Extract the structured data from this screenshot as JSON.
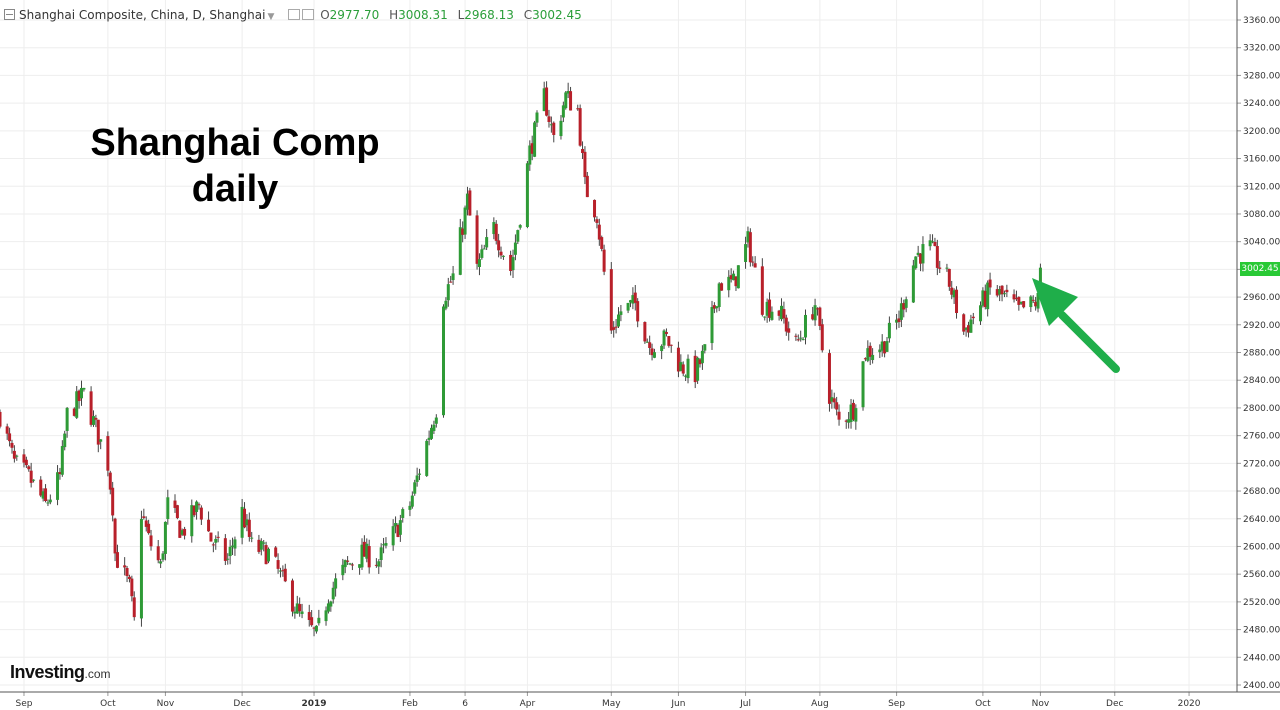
{
  "legend": {
    "symbol": "Shanghai Composite, China, D, Shanghai",
    "open_key": "O",
    "open": "2977.70",
    "high_key": "H",
    "high": "3008.31",
    "low_key": "L",
    "low": "2968.13",
    "close_key": "C",
    "close": "3002.45"
  },
  "headline": {
    "line1": "Shanghai Comp",
    "line2": "daily"
  },
  "logo": {
    "brand": "Investing",
    "suffix": ".com"
  },
  "price_tag": "3002.45",
  "colors": {
    "up": "#2e9a36",
    "down": "#b8202a",
    "arrow": "#1fae4a",
    "price_tag": "#29c935",
    "grid": "#eeeeee"
  },
  "icons": [
    "collapse-icon",
    "visibility-icon",
    "settings-icon",
    "dropdown-caret-icon",
    "arrow-icon"
  ],
  "chart_data": {
    "type": "candlestick",
    "title": "Shanghai Comp daily",
    "xlabel": "",
    "ylabel": "",
    "ylim": [
      2400,
      3360
    ],
    "ytick_labels": [
      "3360.00",
      "3320.00",
      "3280.00",
      "3240.00",
      "3200.00",
      "3160.00",
      "3120.00",
      "3080.00",
      "3040.00",
      "3000.00",
      "2960.00",
      "2920.00",
      "2880.00",
      "2840.00",
      "2800.00",
      "2760.00",
      "2720.00",
      "2680.00",
      "2640.00",
      "2600.00",
      "2560.00",
      "2520.00",
      "2480.00",
      "2440.00",
      "2400.00"
    ],
    "xtick_labels": [
      "Sep",
      "Oct",
      "Nov",
      "Dec",
      "2019",
      "Feb",
      "6",
      "Apr",
      "May",
      "Jun",
      "Jul",
      "Aug",
      "Sep",
      "Oct",
      "Nov",
      "Dec",
      "2020"
    ],
    "xlim": [
      "2018-08-24",
      "2020-01-22"
    ],
    "price_path": [
      [
        "2018-08-24",
        2790
      ],
      [
        "2018-08-30",
        2720
      ],
      [
        "2018-09-05",
        2700
      ],
      [
        "2018-09-12",
        2660
      ],
      [
        "2018-09-18",
        2700
      ],
      [
        "2018-09-21",
        2790
      ],
      [
        "2018-09-28",
        2820
      ],
      [
        "2018-10-08",
        2720
      ],
      [
        "2018-10-10",
        2660
      ],
      [
        "2018-10-11",
        2590
      ],
      [
        "2018-10-17",
        2540
      ],
      [
        "2018-10-19",
        2490
      ],
      [
        "2018-10-22",
        2650
      ],
      [
        "2018-10-25",
        2610
      ],
      [
        "2018-10-30",
        2570
      ],
      [
        "2018-11-02",
        2660
      ],
      [
        "2018-11-08",
        2620
      ],
      [
        "2018-11-15",
        2660
      ],
      [
        "2018-11-20",
        2610
      ],
      [
        "2018-11-27",
        2580
      ],
      [
        "2018-12-03",
        2650
      ],
      [
        "2018-12-07",
        2600
      ],
      [
        "2018-12-14",
        2590
      ],
      [
        "2018-12-20",
        2550
      ],
      [
        "2018-12-27",
        2500
      ],
      [
        "2019-01-03",
        2470
      ],
      [
        "2019-01-08",
        2530
      ],
      [
        "2019-01-15",
        2570
      ],
      [
        "2019-01-22",
        2590
      ],
      [
        "2019-01-29",
        2580
      ],
      [
        "2019-02-11",
        2660
      ],
      [
        "2019-02-18",
        2750
      ],
      [
        "2019-02-22",
        2800
      ],
      [
        "2019-02-25",
        2960
      ],
      [
        "2019-03-01",
        2990
      ],
      [
        "2019-03-07",
        3100
      ],
      [
        "2019-03-11",
        3000
      ],
      [
        "2019-03-18",
        3060
      ],
      [
        "2019-03-25",
        3000
      ],
      [
        "2019-03-29",
        3080
      ],
      [
        "2019-04-02",
        3170
      ],
      [
        "2019-04-08",
        3250
      ],
      [
        "2019-04-12",
        3190
      ],
      [
        "2019-04-17",
        3250
      ],
      [
        "2019-04-22",
        3230
      ],
      [
        "2019-04-25",
        3120
      ],
      [
        "2019-04-30",
        3080
      ],
      [
        "2019-05-06",
        2910
      ],
      [
        "2019-05-10",
        2940
      ],
      [
        "2019-05-16",
        2950
      ],
      [
        "2019-05-22",
        2890
      ],
      [
        "2019-05-29",
        2900
      ],
      [
        "2019-06-04",
        2860
      ],
      [
        "2019-06-10",
        2850
      ],
      [
        "2019-06-14",
        2880
      ],
      [
        "2019-06-20",
        2980
      ],
      [
        "2019-06-26",
        2980
      ],
      [
        "2019-07-02",
        3040
      ],
      [
        "2019-07-08",
        2950
      ],
      [
        "2019-07-15",
        2940
      ],
      [
        "2019-07-22",
        2890
      ],
      [
        "2019-07-30",
        2950
      ],
      [
        "2019-08-05",
        2820
      ],
      [
        "2019-08-09",
        2780
      ],
      [
        "2019-08-15",
        2800
      ],
      [
        "2019-08-20",
        2880
      ],
      [
        "2019-08-27",
        2890
      ],
      [
        "2019-09-03",
        2930
      ],
      [
        "2019-09-10",
        3020
      ],
      [
        "2019-09-16",
        3030
      ],
      [
        "2019-09-24",
        2980
      ],
      [
        "2019-09-30",
        2910
      ],
      [
        "2019-10-11",
        2970
      ],
      [
        "2019-10-17",
        2960
      ],
      [
        "2019-10-23",
        2940
      ],
      [
        "2019-10-29",
        2950
      ],
      [
        "2019-11-01",
        2958
      ]
    ],
    "last_candle": {
      "open": 2977.7,
      "high": 3008.31,
      "low": 2968.13,
      "close": 3002.45
    }
  }
}
